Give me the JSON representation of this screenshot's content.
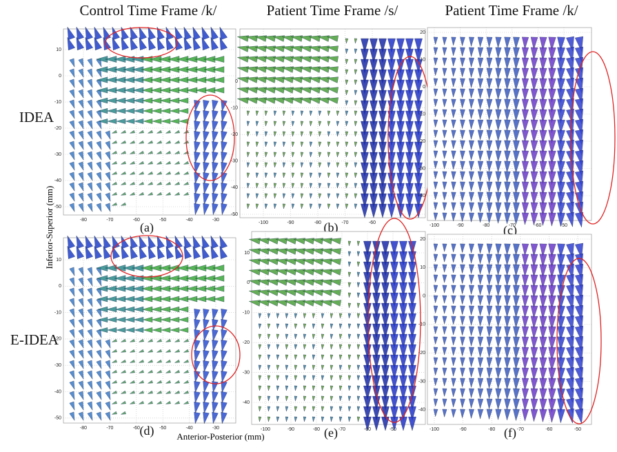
{
  "columns": [
    "Control Time Frame /k/",
    "Patient Time Frame /s/",
    "Patient Time Frame /k/"
  ],
  "rows": [
    "IDEA",
    "E-IDEA"
  ],
  "y_axis_label": "Inferior-Superior (mm)",
  "x_axis_label": "Anterior-Posterior (mm)",
  "panels": [
    {
      "label": "(a)",
      "xticks": [
        "-80",
        "-70",
        "-60",
        "-50",
        "-40",
        "-30"
      ],
      "yticks": [
        "10",
        "0",
        "-10",
        "-20",
        "-30",
        "-40",
        "-50"
      ]
    },
    {
      "label": "(b)",
      "xticks": [
        "-100",
        "-90",
        "-80",
        "-70",
        "-60"
      ],
      "yticks": [
        "0",
        "-10",
        "-20",
        "-30",
        "-40",
        "-50"
      ]
    },
    {
      "label": "(c)",
      "xticks": [
        "-100",
        "-90",
        "-80",
        "-70",
        "-60",
        "-50"
      ],
      "yticks": [
        "20",
        "10",
        "0",
        "-10",
        "-20",
        "-30",
        "-40"
      ]
    },
    {
      "label": "(d)",
      "xticks": [
        "-80",
        "-70",
        "-60",
        "-50",
        "-40",
        "-30"
      ],
      "yticks": [
        "10",
        "0",
        "-10",
        "-20",
        "-30",
        "-40",
        "-50"
      ]
    },
    {
      "label": "(e)",
      "xticks": [
        "-100",
        "-90",
        "-80",
        "-70",
        "-60",
        "-50"
      ],
      "yticks": [
        "10",
        "0",
        "-10",
        "-20",
        "-30",
        "-40"
      ]
    },
    {
      "label": "(f)",
      "xticks": [
        "-100",
        "-90",
        "-80",
        "-70",
        "-60",
        "-50"
      ],
      "yticks": [
        "20",
        "10",
        "0",
        "-10",
        "-20",
        "-30",
        "-40"
      ]
    }
  ]
}
